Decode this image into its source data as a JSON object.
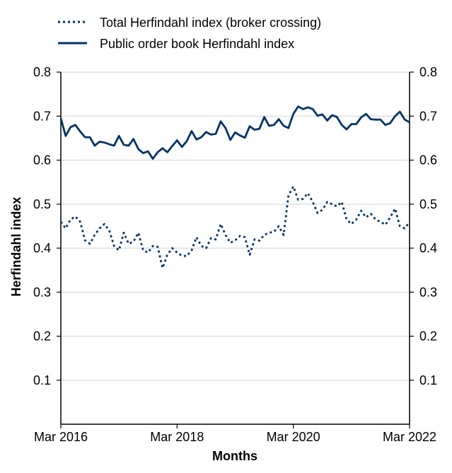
{
  "chart_data": {
    "type": "line",
    "xlabel": "Months",
    "ylabel": "Herfindahl index",
    "ylim": [
      0,
      0.8
    ],
    "yticks": [
      0.1,
      0.2,
      0.3,
      0.4,
      0.5,
      0.6,
      0.7,
      0.8
    ],
    "ytick_labels": [
      "0.1",
      "0.2",
      "0.3",
      "0.4",
      "0.5",
      "0.6",
      "0.7",
      "0.8"
    ],
    "xlim": [
      "2016-03",
      "2022-03"
    ],
    "xticks": [
      "2016-03",
      "2018-03",
      "2020-03",
      "2022-03"
    ],
    "xtick_labels": [
      "Mar 2016",
      "Mar 2018",
      "Mar 2020",
      "Mar 2022"
    ],
    "secondary_y_axis": true,
    "grid": "horizontal",
    "legend_position": "top-left",
    "colors": {
      "series": "#003366",
      "grid": "#d9d9d9",
      "axis": "#000000"
    },
    "x": [
      "2016-03",
      "2016-04",
      "2016-05",
      "2016-06",
      "2016-07",
      "2016-08",
      "2016-09",
      "2016-10",
      "2016-11",
      "2016-12",
      "2017-01",
      "2017-02",
      "2017-03",
      "2017-04",
      "2017-05",
      "2017-06",
      "2017-07",
      "2017-08",
      "2017-09",
      "2017-10",
      "2017-11",
      "2017-12",
      "2018-01",
      "2018-02",
      "2018-03",
      "2018-04",
      "2018-05",
      "2018-06",
      "2018-07",
      "2018-08",
      "2018-09",
      "2018-10",
      "2018-11",
      "2018-12",
      "2019-01",
      "2019-02",
      "2019-03",
      "2019-04",
      "2019-05",
      "2019-06",
      "2019-07",
      "2019-08",
      "2019-09",
      "2019-10",
      "2019-11",
      "2019-12",
      "2020-01",
      "2020-02",
      "2020-03",
      "2020-04",
      "2020-05",
      "2020-06",
      "2020-07",
      "2020-08",
      "2020-09",
      "2020-10",
      "2020-11",
      "2020-12",
      "2021-01",
      "2021-02",
      "2021-03",
      "2021-04",
      "2021-05",
      "2021-06",
      "2021-07",
      "2021-08",
      "2021-09",
      "2021-10",
      "2021-11",
      "2021-12",
      "2022-01",
      "2022-02",
      "2022-03"
    ],
    "series": [
      {
        "name": "Total Herfindahl index (broker crossing)",
        "style": "dotted",
        "values": [
          0.46,
          0.445,
          0.465,
          0.472,
          0.46,
          0.418,
          0.41,
          0.43,
          0.445,
          0.455,
          0.44,
          0.405,
          0.395,
          0.435,
          0.41,
          0.415,
          0.435,
          0.395,
          0.39,
          0.405,
          0.403,
          0.355,
          0.385,
          0.4,
          0.39,
          0.383,
          0.382,
          0.395,
          0.425,
          0.405,
          0.4,
          0.423,
          0.42,
          0.455,
          0.43,
          0.412,
          0.418,
          0.428,
          0.425,
          0.385,
          0.42,
          0.417,
          0.43,
          0.435,
          0.437,
          0.45,
          0.43,
          0.52,
          0.54,
          0.51,
          0.512,
          0.525,
          0.505,
          0.48,
          0.487,
          0.505,
          0.5,
          0.495,
          0.505,
          0.465,
          0.455,
          0.465,
          0.485,
          0.47,
          0.478,
          0.465,
          0.46,
          0.453,
          0.47,
          0.49,
          0.45,
          0.445,
          0.46
        ]
      },
      {
        "name": "Public order book Herfindahl index",
        "style": "solid",
        "values": [
          0.695,
          0.655,
          0.675,
          0.68,
          0.665,
          0.652,
          0.652,
          0.633,
          0.642,
          0.64,
          0.636,
          0.633,
          0.655,
          0.635,
          0.633,
          0.648,
          0.625,
          0.616,
          0.62,
          0.603,
          0.618,
          0.627,
          0.618,
          0.632,
          0.645,
          0.63,
          0.643,
          0.666,
          0.647,
          0.652,
          0.664,
          0.658,
          0.66,
          0.688,
          0.673,
          0.646,
          0.663,
          0.656,
          0.651,
          0.677,
          0.669,
          0.671,
          0.698,
          0.678,
          0.68,
          0.693,
          0.678,
          0.673,
          0.705,
          0.722,
          0.716,
          0.72,
          0.716,
          0.701,
          0.704,
          0.69,
          0.702,
          0.698,
          0.68,
          0.67,
          0.682,
          0.682,
          0.697,
          0.705,
          0.693,
          0.692,
          0.692,
          0.68,
          0.684,
          0.7,
          0.71,
          0.692,
          0.686
        ]
      }
    ]
  }
}
